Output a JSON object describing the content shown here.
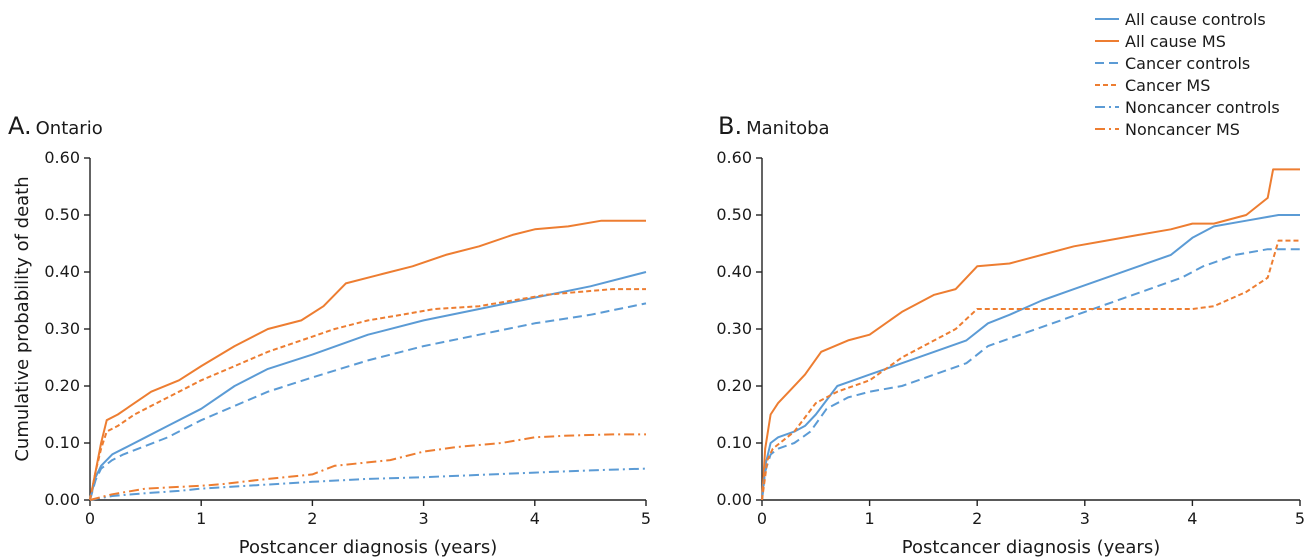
{
  "legend": {
    "items": [
      {
        "name": "All cause controls",
        "color": "#5b9bd5",
        "dash": "solid"
      },
      {
        "name": "All cause MS",
        "color": "#ed7d31",
        "dash": "solid"
      },
      {
        "name": "Cancer controls",
        "color": "#5b9bd5",
        "dash": "dashed"
      },
      {
        "name": "Cancer MS",
        "color": "#ed7d31",
        "dash": "dotted"
      },
      {
        "name": "Noncancer controls",
        "color": "#5b9bd5",
        "dash": "dashdot"
      },
      {
        "name": "Noncancer MS",
        "color": "#ed7d31",
        "dash": "dashdot"
      }
    ]
  },
  "chart_data": [
    {
      "type": "line",
      "panel_letter": "A.",
      "panel_name": "Ontario",
      "xlabel": "Postcancer diagnosis (years)",
      "ylabel": "Cumulative probability of death",
      "xlim": [
        0,
        5
      ],
      "ylim": [
        0,
        0.6
      ],
      "xticks": [
        0,
        1,
        2,
        3,
        4,
        5
      ],
      "xtick_labels": [
        "0",
        "1",
        "2",
        "3",
        "4",
        "5"
      ],
      "yticks": [
        0,
        0.1,
        0.2,
        0.3,
        0.4,
        0.5,
        0.6
      ],
      "ytick_labels": [
        "0.00",
        "0.10",
        "0.20",
        "0.30",
        "0.40",
        "0.50",
        "0.60"
      ],
      "grid": false,
      "series": [
        {
          "name": "All cause controls",
          "x": [
            0,
            0.05,
            0.1,
            0.2,
            0.3,
            0.5,
            0.7,
            1.0,
            1.3,
            1.6,
            2.0,
            2.5,
            3.0,
            3.5,
            4.0,
            4.5,
            5.0
          ],
          "y": [
            0,
            0.04,
            0.06,
            0.08,
            0.09,
            0.11,
            0.13,
            0.16,
            0.2,
            0.23,
            0.255,
            0.29,
            0.315,
            0.335,
            0.355,
            0.375,
            0.4
          ]
        },
        {
          "name": "All cause MS",
          "x": [
            0,
            0.05,
            0.1,
            0.15,
            0.25,
            0.4,
            0.55,
            0.8,
            1.0,
            1.3,
            1.6,
            1.9,
            2.1,
            2.3,
            2.6,
            2.9,
            3.2,
            3.5,
            3.8,
            4.0,
            4.3,
            4.6,
            5.0
          ],
          "y": [
            0,
            0.05,
            0.1,
            0.14,
            0.15,
            0.17,
            0.19,
            0.21,
            0.235,
            0.27,
            0.3,
            0.315,
            0.34,
            0.38,
            0.395,
            0.41,
            0.43,
            0.445,
            0.465,
            0.475,
            0.48,
            0.49,
            0.49
          ]
        },
        {
          "name": "Cancer controls",
          "x": [
            0,
            0.05,
            0.1,
            0.2,
            0.3,
            0.5,
            0.7,
            1.0,
            1.3,
            1.6,
            2.0,
            2.5,
            3.0,
            3.5,
            4.0,
            4.5,
            5.0
          ],
          "y": [
            0,
            0.035,
            0.055,
            0.07,
            0.08,
            0.095,
            0.11,
            0.14,
            0.165,
            0.19,
            0.215,
            0.245,
            0.27,
            0.29,
            0.31,
            0.325,
            0.345
          ]
        },
        {
          "name": "Cancer MS",
          "x": [
            0,
            0.05,
            0.1,
            0.15,
            0.25,
            0.4,
            0.6,
            0.8,
            1.0,
            1.3,
            1.6,
            1.9,
            2.2,
            2.5,
            2.8,
            3.1,
            3.5,
            3.8,
            4.1,
            4.4,
            4.7,
            5.0
          ],
          "y": [
            0,
            0.05,
            0.09,
            0.12,
            0.13,
            0.15,
            0.17,
            0.19,
            0.21,
            0.235,
            0.26,
            0.28,
            0.3,
            0.315,
            0.325,
            0.335,
            0.34,
            0.35,
            0.36,
            0.365,
            0.37,
            0.37
          ]
        },
        {
          "name": "Noncancer controls",
          "x": [
            0,
            0.2,
            0.5,
            0.8,
            1.0,
            1.5,
            2.0,
            2.5,
            3.0,
            3.5,
            4.0,
            4.5,
            5.0
          ],
          "y": [
            0,
            0.007,
            0.012,
            0.016,
            0.02,
            0.026,
            0.032,
            0.037,
            0.04,
            0.044,
            0.048,
            0.052,
            0.055
          ]
        },
        {
          "name": "Noncancer MS",
          "x": [
            0,
            0.2,
            0.5,
            1.0,
            1.2,
            1.5,
            2.0,
            2.2,
            2.7,
            3.0,
            3.3,
            3.7,
            4.0,
            4.3,
            4.7,
            5.0
          ],
          "y": [
            0,
            0.01,
            0.02,
            0.025,
            0.028,
            0.035,
            0.045,
            0.06,
            0.07,
            0.085,
            0.093,
            0.1,
            0.11,
            0.113,
            0.115,
            0.115
          ]
        }
      ]
    },
    {
      "type": "line",
      "panel_letter": "B.",
      "panel_name": "Manitoba",
      "xlabel": "Postcancer diagnosis (years)",
      "ylabel": "",
      "xlim": [
        0,
        5
      ],
      "ylim": [
        0,
        0.6
      ],
      "xticks": [
        0,
        1,
        2,
        3,
        4,
        5
      ],
      "xtick_labels": [
        "0",
        "1",
        "2",
        "3",
        "4",
        "5"
      ],
      "yticks": [
        0,
        0.1,
        0.2,
        0.3,
        0.4,
        0.5,
        0.6
      ],
      "ytick_labels": [
        "0.00",
        "0.10",
        "0.20",
        "0.30",
        "0.40",
        "0.50",
        "0.60"
      ],
      "grid": false,
      "series": [
        {
          "name": "All cause controls",
          "x": [
            0,
            0.03,
            0.08,
            0.15,
            0.3,
            0.4,
            0.5,
            0.7,
            1.0,
            1.3,
            1.6,
            1.9,
            2.1,
            2.3,
            2.6,
            2.9,
            3.2,
            3.5,
            3.8,
            4.0,
            4.2,
            4.5,
            4.8,
            5.0
          ],
          "y": [
            0,
            0.06,
            0.1,
            0.11,
            0.12,
            0.13,
            0.15,
            0.2,
            0.22,
            0.24,
            0.26,
            0.28,
            0.31,
            0.325,
            0.35,
            0.37,
            0.39,
            0.41,
            0.43,
            0.46,
            0.48,
            0.49,
            0.5,
            0.5
          ]
        },
        {
          "name": "All cause MS",
          "x": [
            0,
            0.03,
            0.08,
            0.15,
            0.25,
            0.4,
            0.55,
            0.8,
            1.0,
            1.3,
            1.6,
            1.8,
            2.0,
            2.3,
            2.6,
            2.9,
            3.2,
            3.5,
            3.8,
            4.0,
            4.2,
            4.5,
            4.7,
            4.75,
            5.0
          ],
          "y": [
            0,
            0.09,
            0.15,
            0.17,
            0.19,
            0.22,
            0.26,
            0.28,
            0.29,
            0.33,
            0.36,
            0.37,
            0.41,
            0.415,
            0.43,
            0.445,
            0.455,
            0.465,
            0.475,
            0.485,
            0.485,
            0.5,
            0.53,
            0.58,
            0.58
          ]
        },
        {
          "name": "Cancer controls",
          "x": [
            0,
            0.03,
            0.08,
            0.15,
            0.3,
            0.45,
            0.6,
            0.8,
            1.0,
            1.3,
            1.6,
            1.9,
            2.1,
            2.4,
            2.7,
            3.0,
            3.3,
            3.6,
            3.9,
            4.1,
            4.4,
            4.7,
            5.0
          ],
          "y": [
            0,
            0.05,
            0.08,
            0.09,
            0.1,
            0.12,
            0.16,
            0.18,
            0.19,
            0.2,
            0.22,
            0.24,
            0.27,
            0.29,
            0.31,
            0.33,
            0.35,
            0.37,
            0.39,
            0.41,
            0.43,
            0.44,
            0.44
          ]
        },
        {
          "name": "Cancer MS",
          "x": [
            0,
            0.05,
            0.1,
            0.3,
            0.5,
            0.7,
            1.0,
            1.3,
            1.6,
            1.8,
            2.0,
            2.5,
            3.0,
            3.5,
            4.0,
            4.2,
            4.5,
            4.7,
            4.8,
            5.0
          ],
          "y": [
            0,
            0.07,
            0.09,
            0.12,
            0.17,
            0.19,
            0.21,
            0.25,
            0.28,
            0.3,
            0.335,
            0.335,
            0.335,
            0.335,
            0.335,
            0.34,
            0.365,
            0.39,
            0.455,
            0.455
          ]
        }
      ]
    }
  ]
}
